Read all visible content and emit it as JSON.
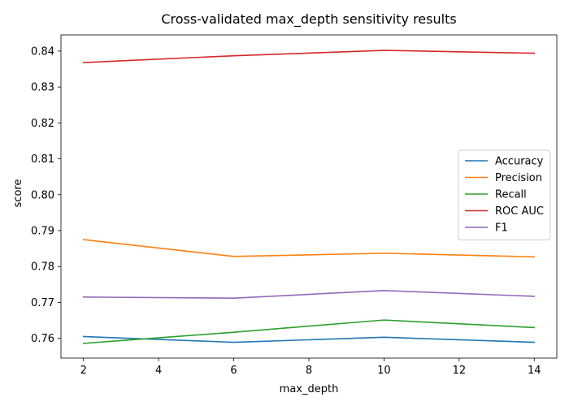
{
  "chart_data": {
    "type": "line",
    "title": "Cross-validated max_depth sensitivity results",
    "xlabel": "max_depth",
    "ylabel": "score",
    "x": [
      2,
      6,
      10,
      14
    ],
    "xlim": [
      1.4,
      14.6
    ],
    "ylim": [
      0.7545,
      0.8445
    ],
    "xticks": [
      2,
      4,
      6,
      8,
      10,
      12,
      14
    ],
    "yticks": [
      0.76,
      0.77,
      0.78,
      0.79,
      0.8,
      0.81,
      0.82,
      0.83,
      0.84
    ],
    "ytick_labels": [
      "0.76",
      "0.77",
      "0.78",
      "0.79",
      "0.80",
      "0.81",
      "0.82",
      "0.83",
      "0.84"
    ],
    "grid": false,
    "legend_position": "center-right",
    "series": [
      {
        "name": "Accuracy",
        "color": "#1f77b4",
        "values": [
          0.7605,
          0.7589,
          0.7603,
          0.7589
        ]
      },
      {
        "name": "Precision",
        "color": "#ff7f0e",
        "values": [
          0.7875,
          0.7828,
          0.7837,
          0.7827
        ]
      },
      {
        "name": "Recall",
        "color": "#2ca02c",
        "values": [
          0.7586,
          0.7617,
          0.7651,
          0.763
        ]
      },
      {
        "name": "ROC AUC",
        "color": "#d62728",
        "values": [
          0.8368,
          0.8387,
          0.8402,
          0.8394
        ]
      },
      {
        "name": "F1",
        "color": "#9467bd",
        "values": [
          0.7715,
          0.7712,
          0.7733,
          0.7717
        ]
      }
    ]
  }
}
